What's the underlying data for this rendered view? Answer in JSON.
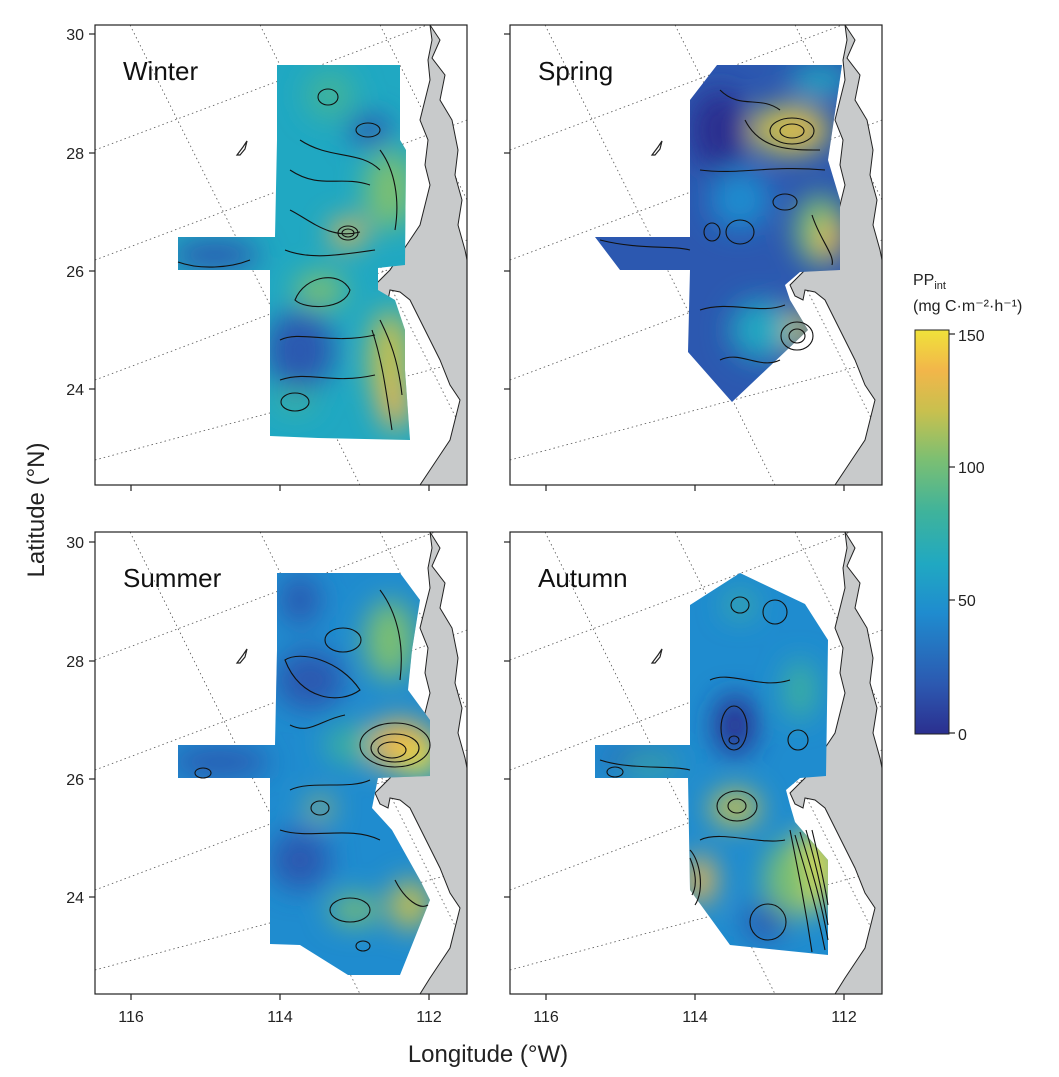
{
  "figure": {
    "y_axis_title": "Latitude (°N)",
    "x_axis_title": "Longitude (°W)",
    "colorbar_title_main": "PP",
    "colorbar_title_sub": "int",
    "colorbar_units": "(mg C·m⁻²·h⁻¹)",
    "colorbar_ticks": [
      "150",
      "100",
      "50",
      "0"
    ],
    "lon_ticks": [
      "116",
      "114",
      "112"
    ],
    "lat_ticks": [
      "30",
      "28",
      "26",
      "24"
    ],
    "colors": {
      "land": "#c8cacb",
      "colormap": [
        "#2b2f8f",
        "#2c58b0",
        "#1f8ccf",
        "#20a8c2",
        "#3fb39b",
        "#7cbf72",
        "#c9c04e",
        "#f2b64a",
        "#f0e23a"
      ]
    }
  },
  "panels": [
    {
      "season": "Winter"
    },
    {
      "season": "Spring"
    },
    {
      "season": "Summer"
    },
    {
      "season": "Autumn"
    }
  ]
}
